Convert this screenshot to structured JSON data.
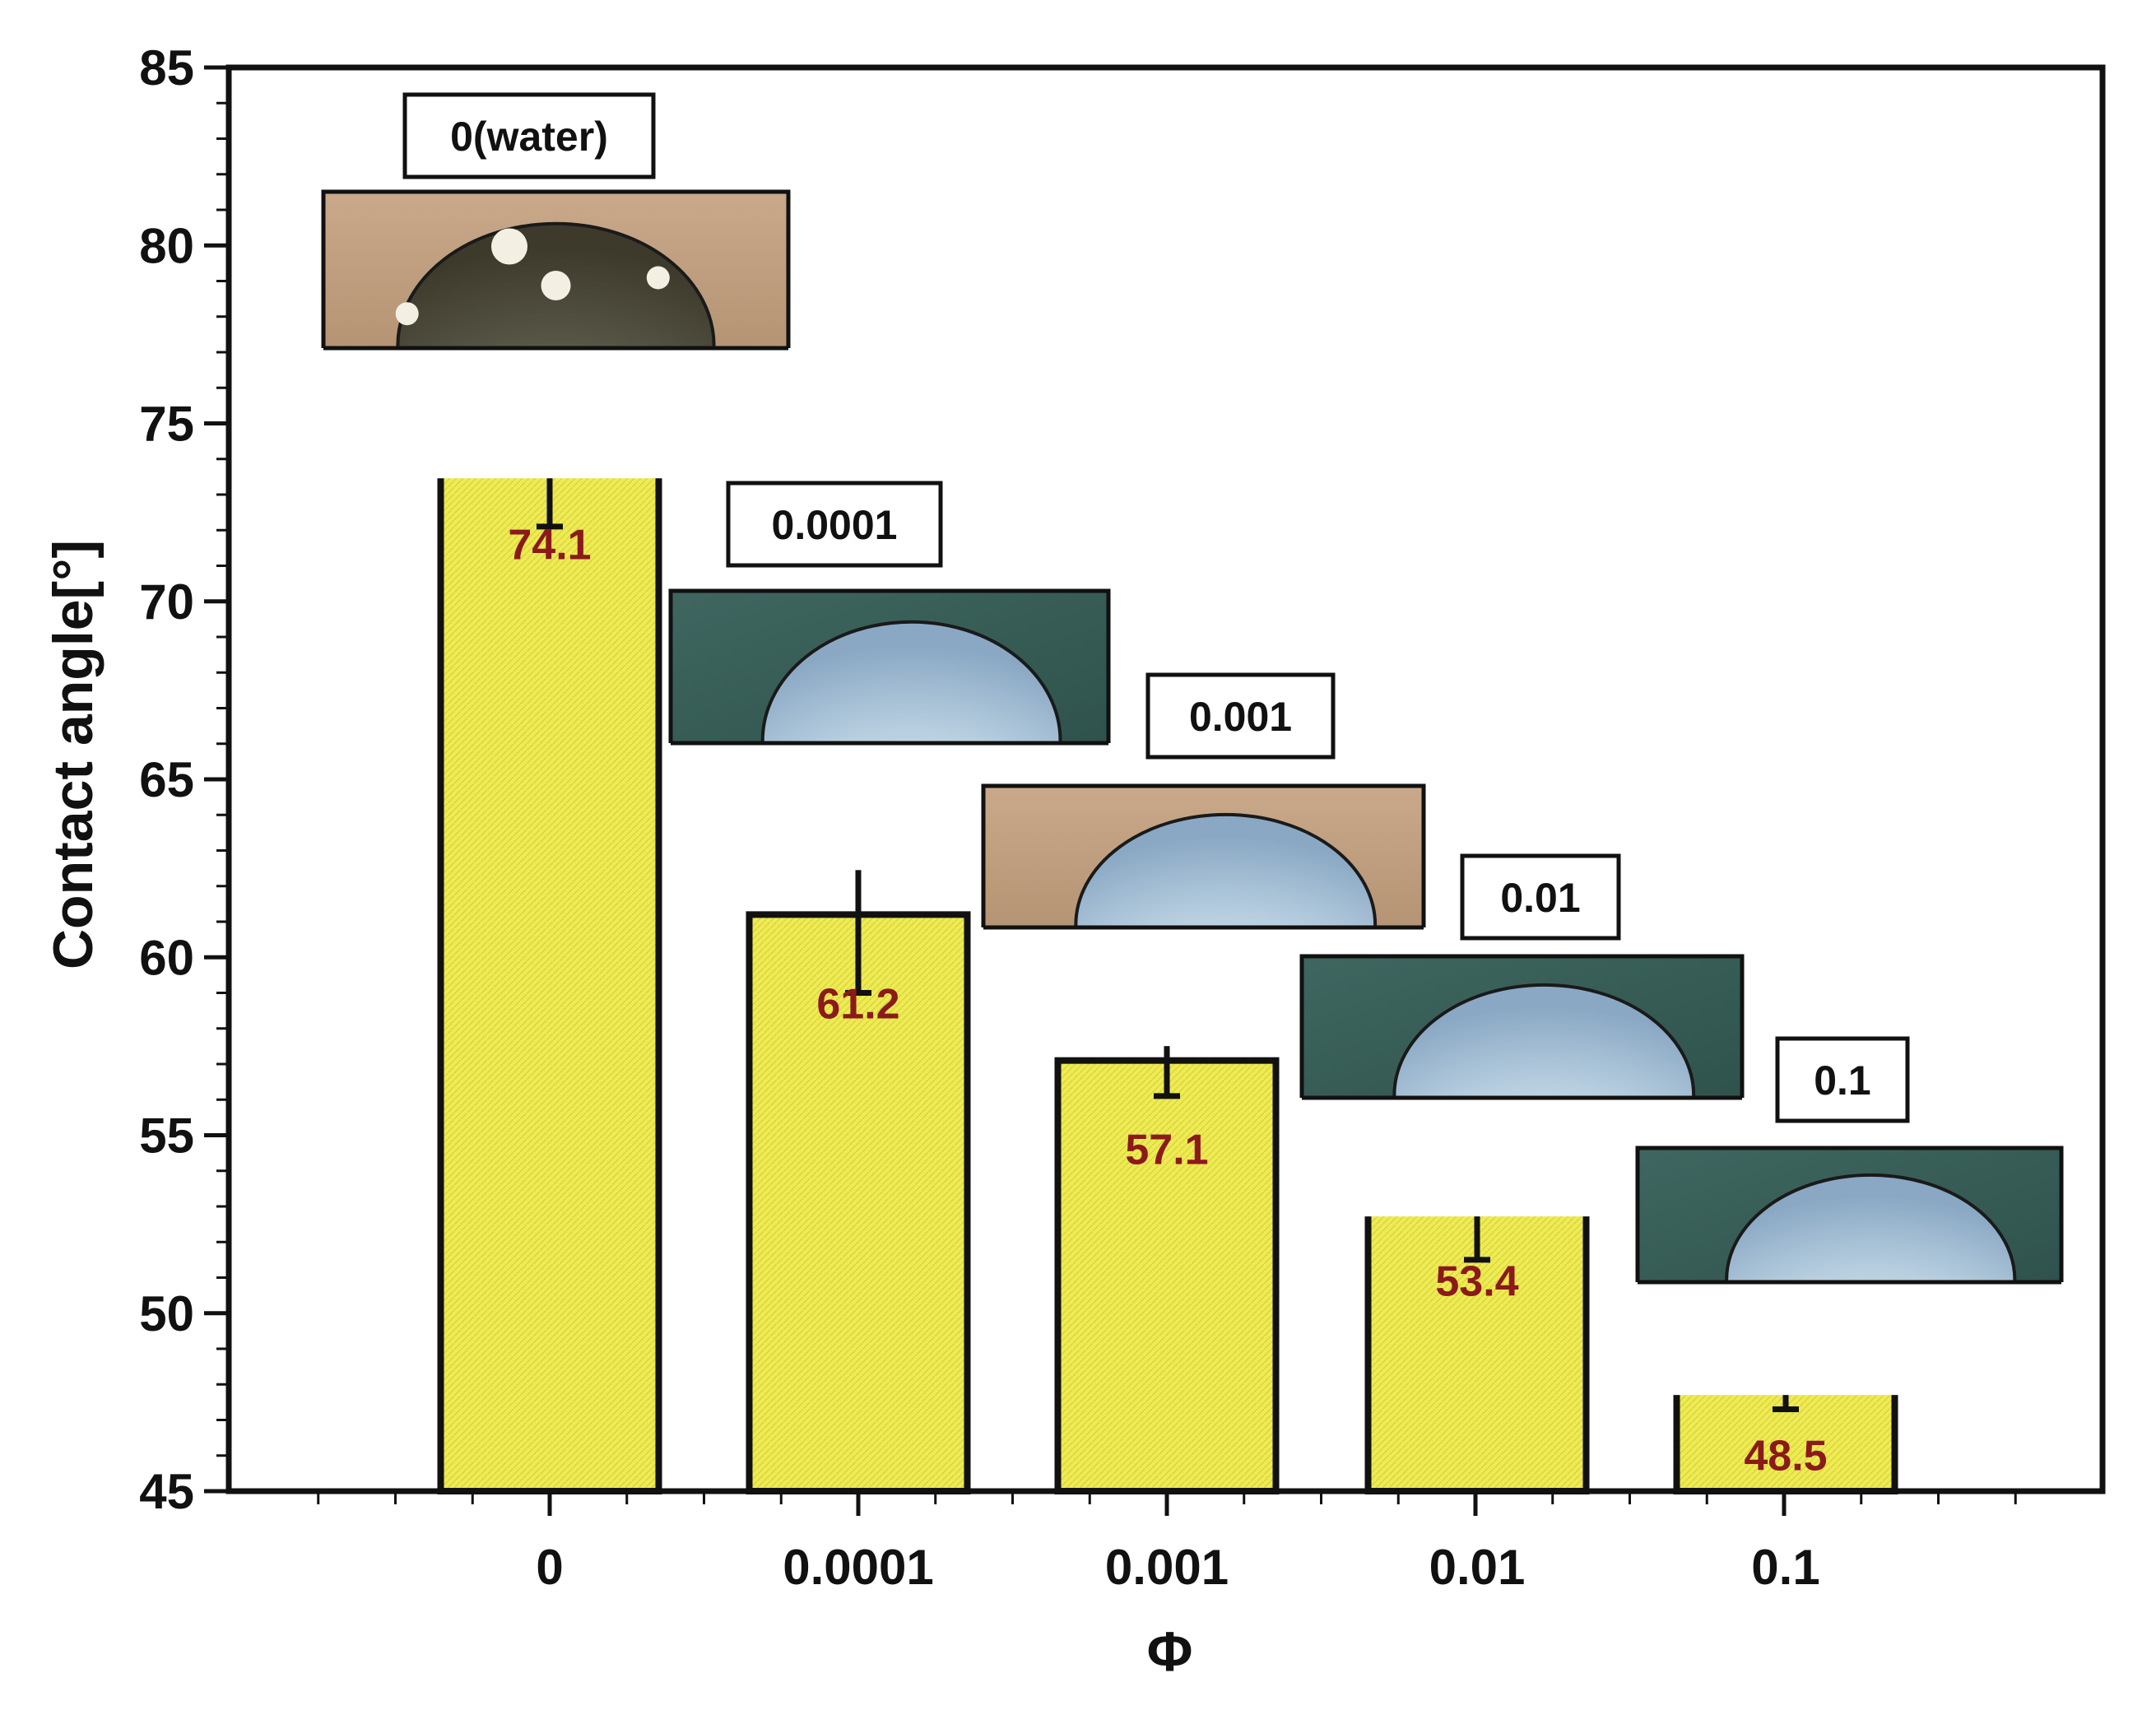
{
  "chart_data": {
    "type": "bar",
    "title": "",
    "xlabel": "Φ",
    "ylabel": "Contact angle[°]",
    "ylim": [
      45,
      85
    ],
    "yticks": [
      45,
      50,
      55,
      60,
      65,
      70,
      75,
      80,
      85
    ],
    "categories": [
      "0",
      "0.0001",
      "0.001",
      "0.01",
      "0.1"
    ],
    "values": [
      74.1,
      61.2,
      57.1,
      53.4,
      48.5
    ],
    "errors": [
      2.0,
      2.2,
      1.0,
      1.9,
      1.2
    ],
    "value_labels": [
      "74.1",
      "61.2",
      "57.1",
      "53.4",
      "48.5"
    ],
    "image_labels": [
      "0(water)",
      "0.0001",
      "0.001",
      "0.01",
      "0.1"
    ],
    "colors": {
      "bar_fill": "#efec5a",
      "bar_stroke": "#111111",
      "value_label": "#8b1a1a"
    },
    "grid": false,
    "legend": "none"
  }
}
